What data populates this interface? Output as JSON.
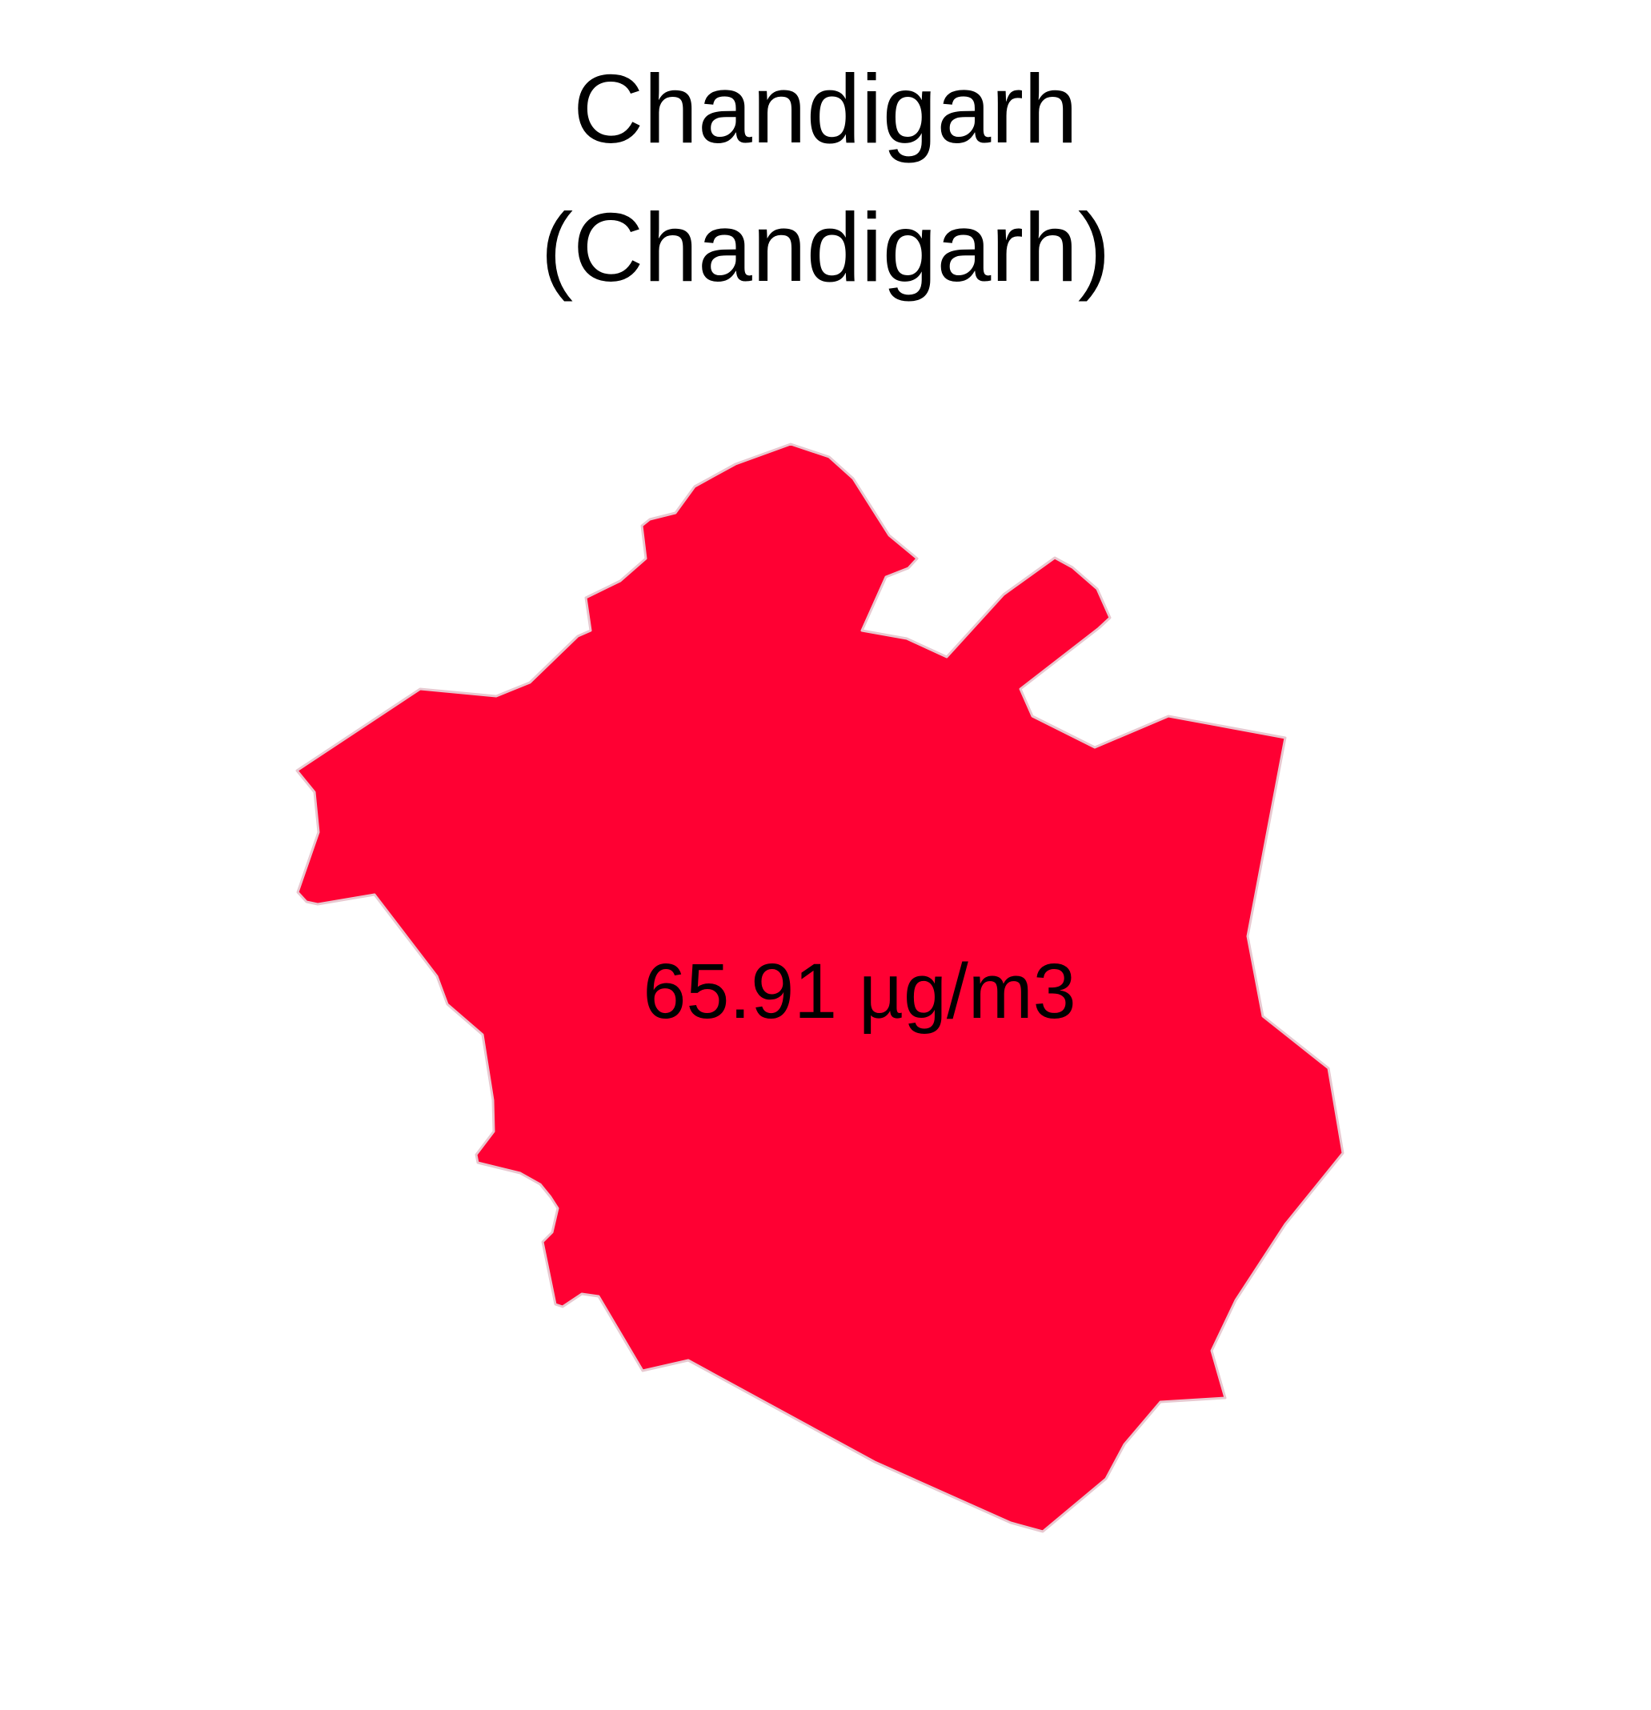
{
  "map": {
    "title": "Chandigarh",
    "subtitle": "(Chandigarh)",
    "region_name": "Chandigarh",
    "value_label": "65.91 µg/m3",
    "value": 65.91,
    "unit": "µg/m3",
    "fill_color": "#FF0033",
    "border_color": "#E8C8D0",
    "background_color": "#FFFFFF"
  }
}
